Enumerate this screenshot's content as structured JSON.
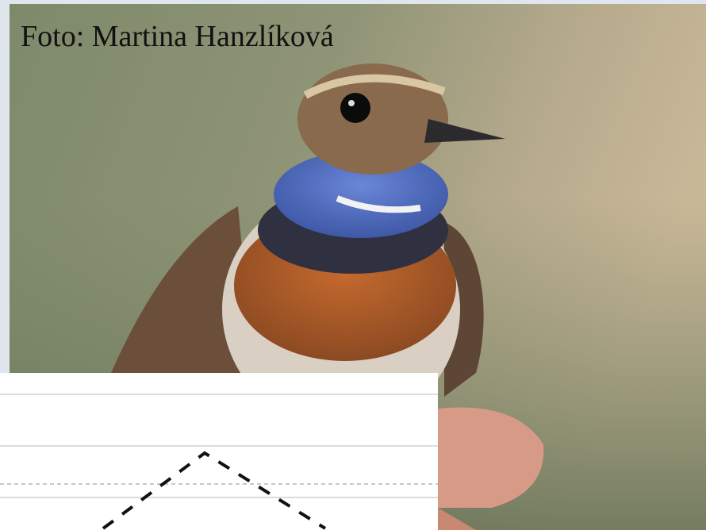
{
  "caption": "Foto: Martina Hanzlíková"
}
